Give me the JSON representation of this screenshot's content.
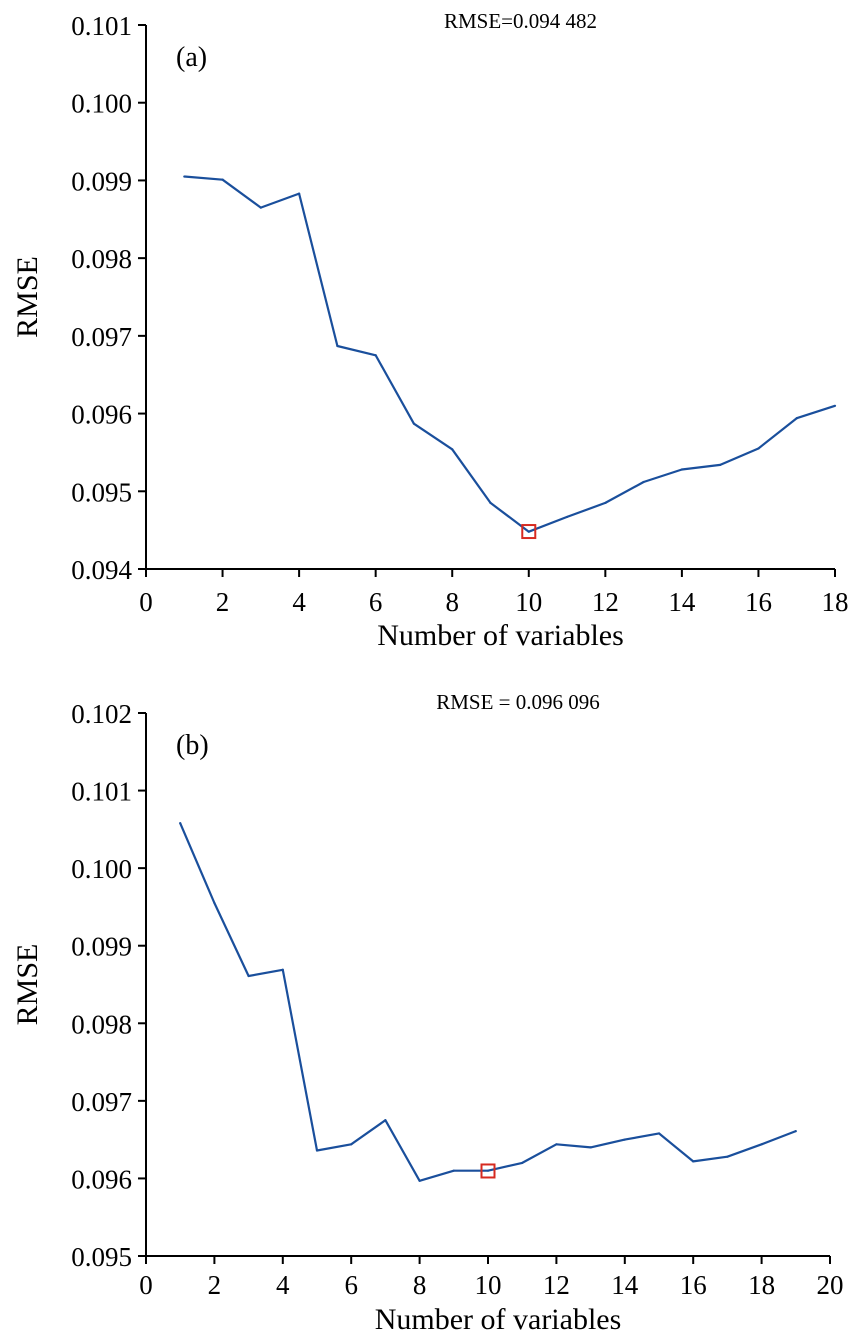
{
  "chart_data": [
    {
      "type": "line",
      "panel_label": "(a)",
      "annotation": "RMSE=0.094 482",
      "xlabel": "Number of variables",
      "ylabel": "RMSE",
      "xlim": [
        0,
        18
      ],
      "ylim": [
        0.094,
        0.101
      ],
      "xticks": [
        "0",
        "2",
        "4",
        "6",
        "8",
        "10",
        "12",
        "14",
        "16",
        "18"
      ],
      "yticks": [
        "0.094",
        "0.095",
        "0.096",
        "0.097",
        "0.098",
        "0.099",
        "0.100",
        "0.101"
      ],
      "line_color": "#1a4f9c",
      "marker_color": "#d62a20",
      "series": [
        {
          "x": [
            1,
            2,
            3,
            4,
            5,
            6,
            7,
            8,
            9,
            10,
            11,
            12,
            13,
            14,
            15,
            16,
            17,
            18
          ],
          "values": [
            0.09905,
            0.09901,
            0.09865,
            0.09883,
            0.09687,
            0.09675,
            0.09587,
            0.09554,
            0.09485,
            0.09448,
            0.09467,
            0.09485,
            0.09512,
            0.09528,
            0.09534,
            0.09555,
            0.09594,
            0.0961
          ]
        }
      ],
      "highlight": {
        "x": 10,
        "y": 0.094482
      }
    },
    {
      "type": "line",
      "panel_label": "(b)",
      "annotation": "RMSE = 0.096 096",
      "xlabel": "Number of variables",
      "ylabel": "RMSE",
      "xlim": [
        0,
        20
      ],
      "ylim": [
        0.095,
        0.102
      ],
      "xticks": [
        "0",
        "2",
        "4",
        "6",
        "8",
        "10",
        "12",
        "14",
        "16",
        "18",
        "20"
      ],
      "yticks": [
        "0.095",
        "0.096",
        "0.097",
        "0.098",
        "0.099",
        "0.100",
        "0.101",
        "0.102"
      ],
      "line_color": "#1a4f9c",
      "marker_color": "#d62a20",
      "series": [
        {
          "x": [
            1,
            2,
            3,
            4,
            5,
            6,
            7,
            8,
            9,
            10,
            11,
            12,
            13,
            14,
            15,
            16,
            17,
            18,
            19
          ],
          "values": [
            0.10058,
            0.09955,
            0.09861,
            0.09869,
            0.09636,
            0.09644,
            0.09675,
            0.09597,
            0.0961,
            0.0961,
            0.0962,
            0.09644,
            0.0964,
            0.0965,
            0.09658,
            0.09622,
            0.09628,
            0.09644,
            0.09661
          ]
        }
      ],
      "highlight": {
        "x": 10,
        "y": 0.096096
      }
    }
  ]
}
